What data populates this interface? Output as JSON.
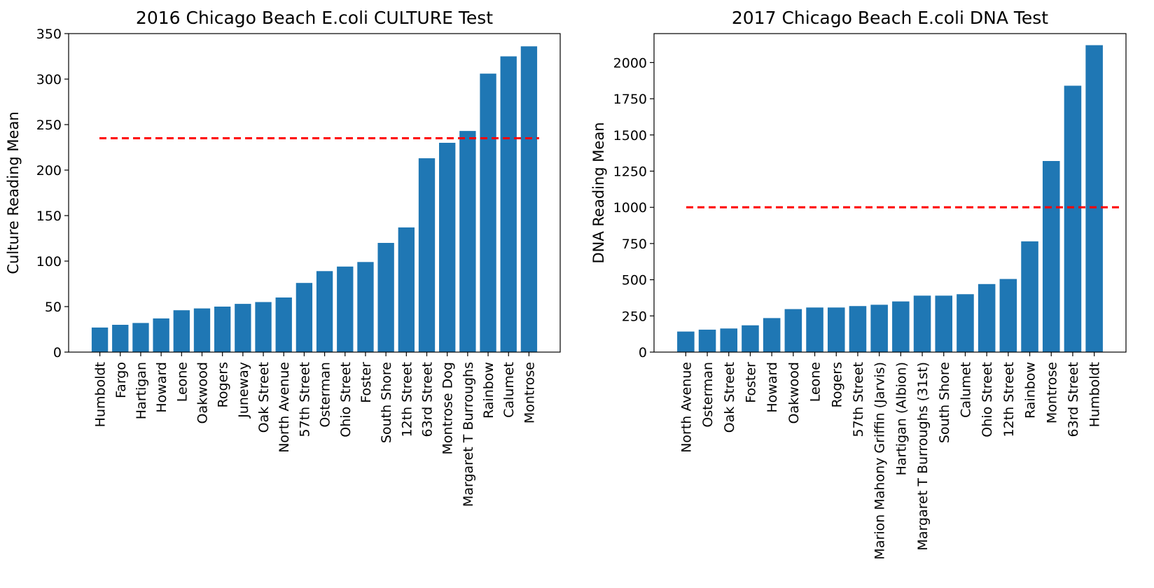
{
  "chart_data": [
    {
      "type": "bar",
      "title": "2016 Chicago Beach E.coli CULTURE Test",
      "xlabel": "",
      "ylabel": "Culture Reading Mean",
      "ylim": [
        0,
        350
      ],
      "yticks": [
        0,
        50,
        100,
        150,
        200,
        250,
        300,
        350
      ],
      "categories": [
        "Humboldt",
        "Fargo",
        "Hartigan",
        "Howard",
        "Leone",
        "Oakwood",
        "Rogers",
        "Juneway",
        "Oak Street",
        "North Avenue",
        "57th Street",
        "Osterman",
        "Ohio Street",
        "Foster",
        "South Shore",
        "12th Street",
        "63rd Street",
        "Montrose Dog",
        "Margaret T Burroughs",
        "Rainbow",
        "Calumet",
        "Montrose"
      ],
      "values": [
        27,
        30,
        32,
        37,
        46,
        48,
        50,
        53,
        55,
        60,
        76,
        89,
        94,
        99,
        120,
        137,
        213,
        230,
        243,
        306,
        325,
        336
      ],
      "threshold": 235,
      "bar_color": "#1f77b4",
      "threshold_color": "#ff0000",
      "grid": false
    },
    {
      "type": "bar",
      "title": "2017 Chicago Beach E.coli DNA Test",
      "xlabel": "",
      "ylabel": "DNA Reading Mean",
      "ylim": [
        0,
        2200
      ],
      "yticks": [
        0,
        250,
        500,
        750,
        1000,
        1250,
        1500,
        1750,
        2000
      ],
      "categories": [
        "North Avenue",
        "Osterman",
        "Oak Street",
        "Foster",
        "Howard",
        "Oakwood",
        "Leone",
        "Rogers",
        "57th Street",
        "Marion Mahony Griffin (Jarvis)",
        "Hartigan (Albion)",
        "Margaret T Burroughs (31st)",
        "South Shore",
        "Calumet",
        "Ohio Street",
        "12th Street",
        "Rainbow",
        "Montrose",
        "63rd Street",
        "Humboldt"
      ],
      "values": [
        142,
        155,
        163,
        185,
        235,
        297,
        308,
        308,
        318,
        327,
        350,
        390,
        390,
        400,
        470,
        505,
        765,
        1320,
        1840,
        2120
      ],
      "threshold": 1000,
      "bar_color": "#1f77b4",
      "threshold_color": "#ff0000",
      "grid": false
    }
  ]
}
